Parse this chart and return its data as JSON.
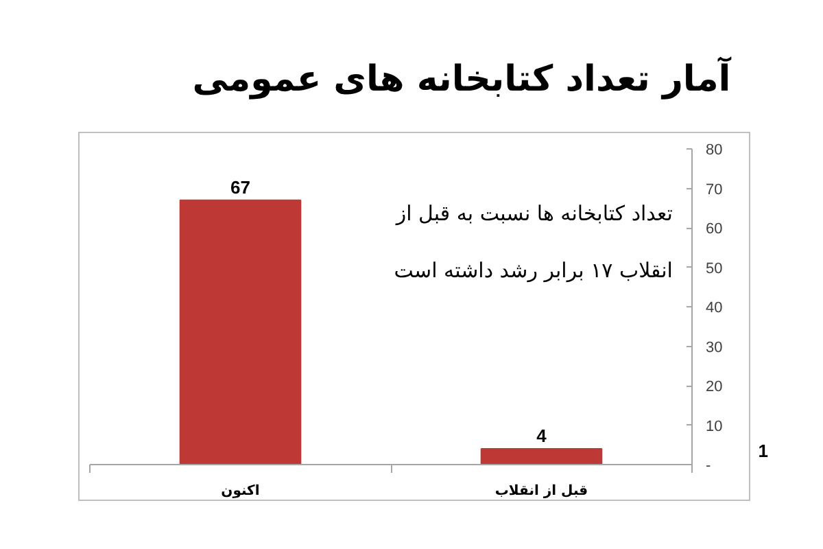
{
  "chart_data": {
    "type": "bar",
    "title": "آمار تعداد کتابخانه های عمومی",
    "categories": [
      "اکنون",
      "قبل از انقلاب"
    ],
    "values": [
      67,
      4
    ],
    "color": "#be3835",
    "ylim": [
      0,
      80
    ],
    "yticks": [
      {
        "value": 0,
        "label": "-"
      },
      10,
      20,
      30,
      40,
      50,
      60,
      70,
      80
    ],
    "grid": false,
    "data_labels": true,
    "annotations": [
      "تعداد کتابخانه ها نسبت به قبل از\nانقلاب ۱۷ برابر رشد داشته است",
      "1"
    ]
  }
}
